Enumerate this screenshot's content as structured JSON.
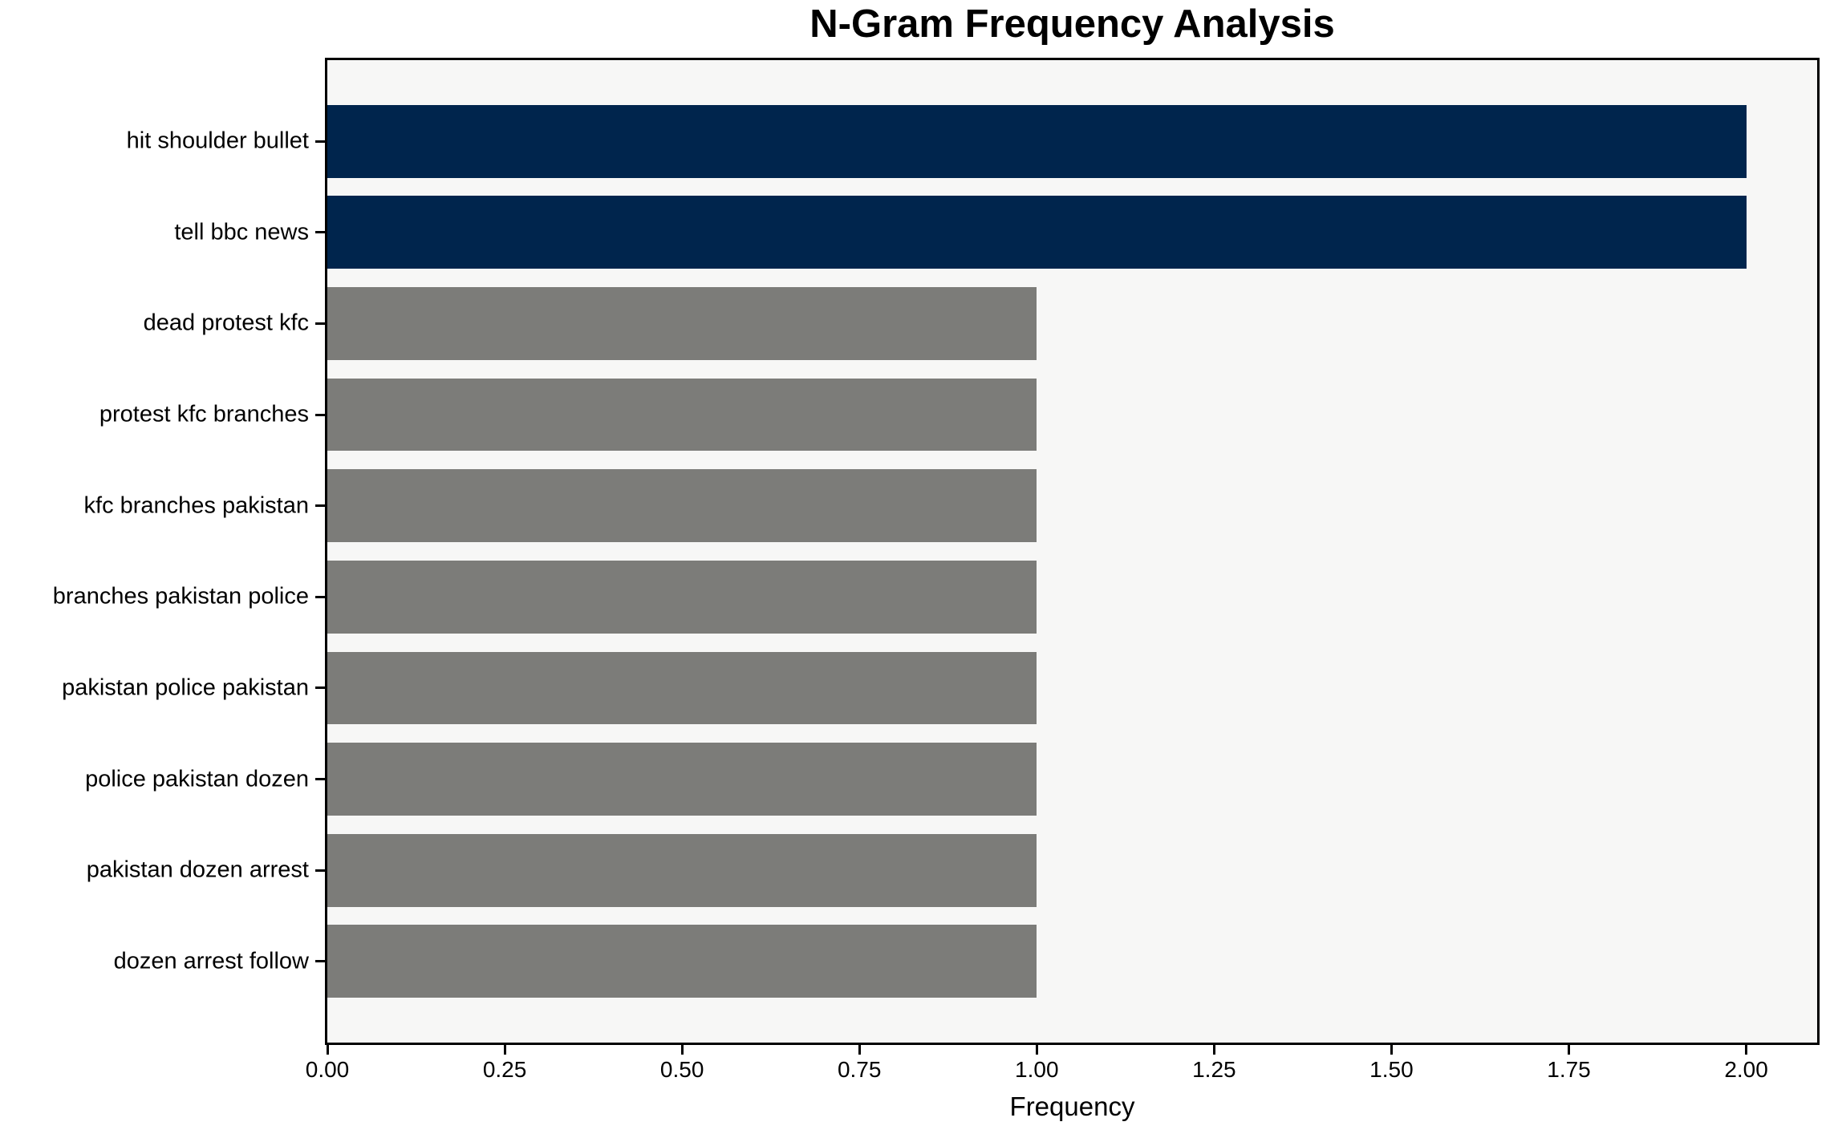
{
  "chart_data": {
    "type": "bar",
    "orientation": "horizontal",
    "title": "N-Gram Frequency Analysis",
    "xlabel": "Frequency",
    "ylabel": "",
    "categories": [
      "hit shoulder bullet",
      "tell bbc news",
      "dead protest kfc",
      "protest kfc branches",
      "kfc branches pakistan",
      "branches pakistan police",
      "pakistan police pakistan",
      "police pakistan dozen",
      "pakistan dozen arrest",
      "dozen arrest follow"
    ],
    "values": [
      2,
      2,
      1,
      1,
      1,
      1,
      1,
      1,
      1,
      1
    ],
    "bar_colors": [
      "#00254d",
      "#00254d",
      "#7c7c79",
      "#7c7c79",
      "#7c7c79",
      "#7c7c79",
      "#7c7c79",
      "#7c7c79",
      "#7c7c79",
      "#7c7c79"
    ],
    "xlim": [
      0,
      2.1
    ],
    "xticks": [
      {
        "value": 0.0,
        "label": "0.00"
      },
      {
        "value": 0.25,
        "label": "0.25"
      },
      {
        "value": 0.5,
        "label": "0.50"
      },
      {
        "value": 0.75,
        "label": "0.75"
      },
      {
        "value": 1.0,
        "label": "1.00"
      },
      {
        "value": 1.25,
        "label": "1.25"
      },
      {
        "value": 1.5,
        "label": "1.50"
      },
      {
        "value": 1.75,
        "label": "1.75"
      },
      {
        "value": 2.0,
        "label": "2.00"
      }
    ],
    "grid": false,
    "legend": "none",
    "colors": {
      "highlight_bar": "#00254d",
      "default_bar": "#7c7c79",
      "plot_background": "#f7f7f6",
      "figure_background": "#ffffff",
      "spine": "#000000",
      "text": "#000000"
    }
  }
}
